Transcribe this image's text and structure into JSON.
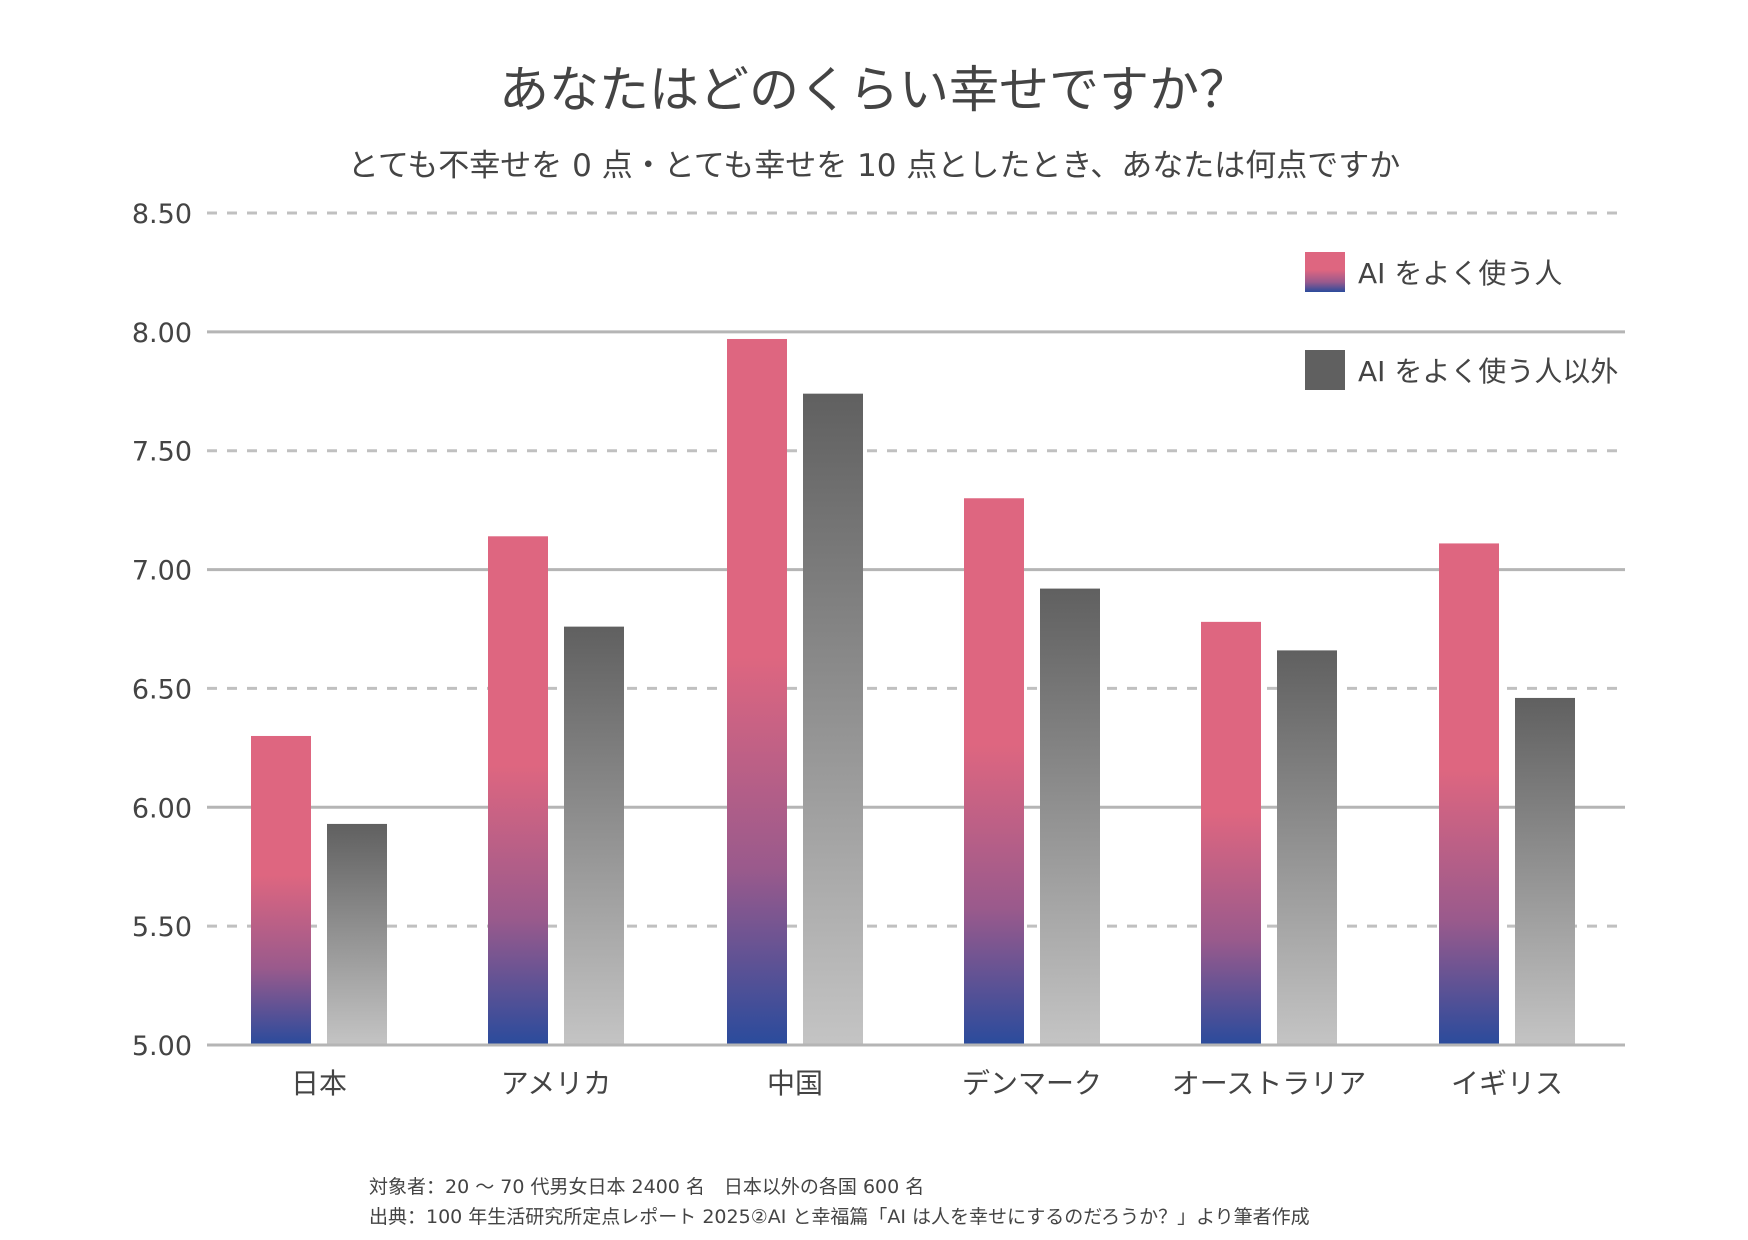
{
  "chart_data": {
    "type": "bar",
    "title": "あなたはどのくらい幸せですか？",
    "subtitle": "とても不幸せを 0 点・とても幸せを 10 点としたとき、あなたは何点ですか",
    "categories": [
      "日本",
      "アメリカ",
      "中国",
      "デンマーク",
      "オーストラリア",
      "イギリス"
    ],
    "series": [
      {
        "name": "AI をよく使う人",
        "values": [
          6.3,
          7.14,
          7.97,
          7.3,
          6.78,
          7.11
        ]
      },
      {
        "name": "AI をよく使う人以外",
        "values": [
          5.93,
          6.76,
          7.74,
          6.92,
          6.66,
          6.46
        ]
      }
    ],
    "ylim": [
      5.0,
      8.5
    ],
    "yticks": [
      "5.00",
      "5.50",
      "6.00",
      "6.50",
      "7.00",
      "7.50",
      "8.00",
      "8.50"
    ],
    "grid": true,
    "legend": "top-right"
  },
  "colors": {
    "series1_top": "#de6680",
    "series1_mid": "#9a5a8c",
    "series1_bottom": "#2a4b9c",
    "series2_top": "#606060",
    "series2_bottom": "#c4c4c4",
    "grid_solid": "#b5b5b5",
    "grid_dashed": "#c0c0c0"
  },
  "notes": {
    "line1": "対象者：20 〜 70 代男女日本 2400 名　日本以外の各国 600 名",
    "line2": "出典：100 年生活研究所定点レポート 2025②AI と幸福篇「AI は人を幸せにするのだろうか？」より筆者作成"
  }
}
